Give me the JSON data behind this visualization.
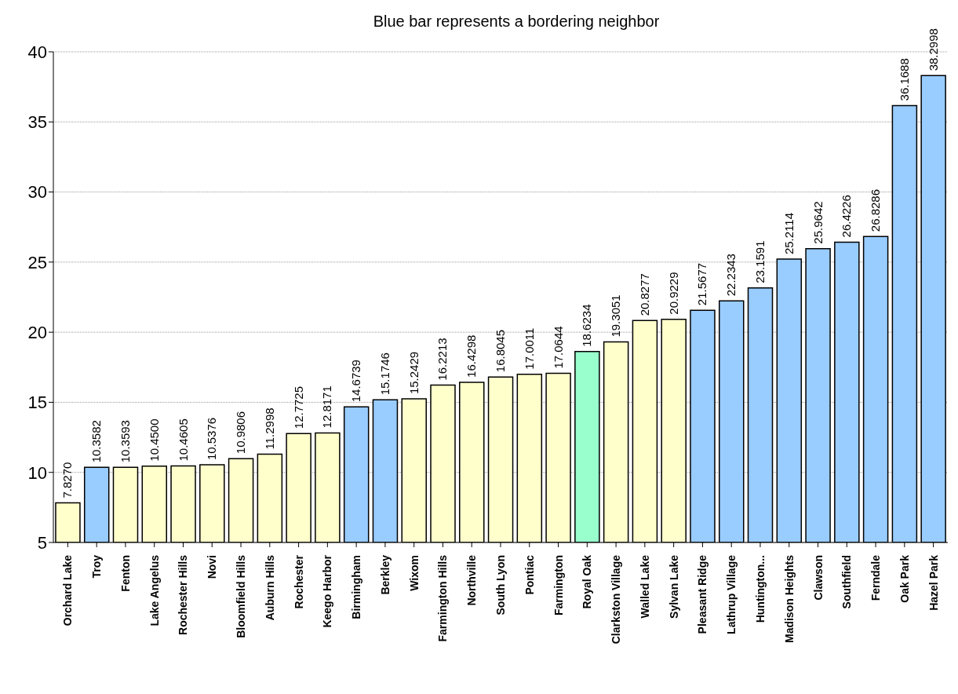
{
  "chart_data": {
    "type": "bar",
    "title": "Blue bar represents a bordering neighbor",
    "categories": [
      "Orchard Lake",
      "Troy",
      "Fenton",
      "Lake Angelus",
      "Rochester Hills",
      "Novi",
      "Bloomfield Hills",
      "Auburn Hills",
      "Rochester",
      "Keego Harbor",
      "Birmingham",
      "Berkley",
      "Wixom",
      "Farmington Hills",
      "Northville",
      "South Lyon",
      "Pontiac",
      "Farmington",
      "Royal Oak",
      "Clarkston Village",
      "Walled Lake",
      "Sylvan Lake",
      "Pleasant Ridge",
      "Lathrup Village",
      "Huntington...",
      "Madison Heights",
      "Clawson",
      "Southfield",
      "Ferndale",
      "Oak Park",
      "Hazel Park"
    ],
    "values": [
      7.827,
      10.3582,
      10.3593,
      10.45,
      10.4605,
      10.5376,
      10.9806,
      11.2998,
      12.7725,
      12.8171,
      14.6739,
      15.1746,
      15.2429,
      16.2213,
      16.4298,
      16.8045,
      17.0011,
      17.0644,
      18.6234,
      19.3051,
      20.8277,
      20.9229,
      21.5677,
      22.2343,
      23.1591,
      25.2114,
      25.9642,
      26.4226,
      26.8286,
      36.1688,
      38.2998
    ],
    "value_labels": [
      "7.8270",
      "10.3582",
      "10.3593",
      "10.4500",
      "10.4605",
      "10.5376",
      "10.9806",
      "11.2998",
      "12.7725",
      "12.8171",
      "14.6739",
      "15.1746",
      "15.2429",
      "16.2213",
      "16.4298",
      "16.8045",
      "17.0011",
      "17.0644",
      "18.6234",
      "19.3051",
      "20.8277",
      "20.9229",
      "21.5677",
      "22.2343",
      "23.1591",
      "25.2114",
      "25.9642",
      "26.4226",
      "26.8286",
      "36.1688",
      "38.2998"
    ],
    "colors": [
      "#ffffcc",
      "#99ccff",
      "#ffffcc",
      "#ffffcc",
      "#ffffcc",
      "#ffffcc",
      "#ffffcc",
      "#ffffcc",
      "#ffffcc",
      "#ffffcc",
      "#99ccff",
      "#99ccff",
      "#ffffcc",
      "#ffffcc",
      "#ffffcc",
      "#ffffcc",
      "#ffffcc",
      "#ffffcc",
      "#99ffcc",
      "#ffffcc",
      "#ffffcc",
      "#ffffcc",
      "#99ccff",
      "#99ccff",
      "#99ccff",
      "#99ccff",
      "#99ccff",
      "#99ccff",
      "#99ccff",
      "#99ccff",
      "#99ccff"
    ],
    "ylim": [
      5,
      40
    ],
    "yticks": [
      5,
      10,
      15,
      20,
      25,
      30,
      35,
      40
    ],
    "grid": "y"
  }
}
